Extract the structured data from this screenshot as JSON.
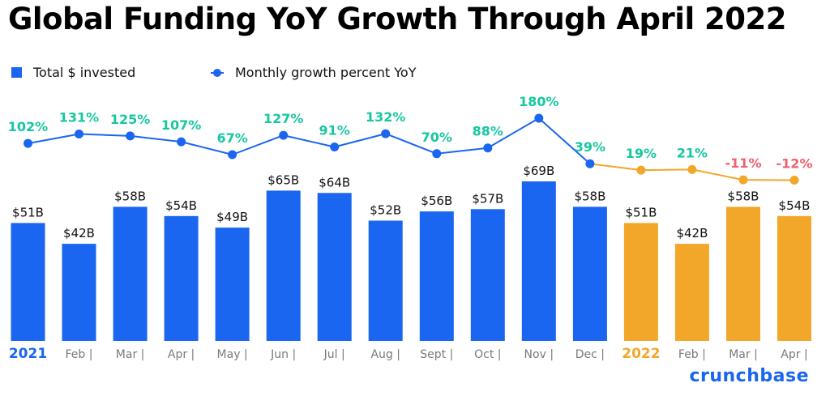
{
  "chart_data": {
    "type": "bar",
    "title": "Global Funding YoY Growth Through April 2022",
    "categories": [
      "2021",
      "Feb |",
      "Mar |",
      "Apr |",
      "May |",
      "Jun |",
      "Jul |",
      "Aug |",
      "Sept |",
      "Oct |",
      "Nov |",
      "Dec |",
      "2022",
      "Feb |",
      "Mar |",
      "Apr |"
    ],
    "series": [
      {
        "name": "Total $ invested",
        "type": "bar",
        "values": [
          51,
          42,
          58,
          54,
          49,
          65,
          64,
          52,
          56,
          57,
          69,
          58,
          51,
          42,
          58,
          54
        ],
        "value_labels": [
          "$51B",
          "$42B",
          "$58B",
          "$54B",
          "$49B",
          "$65B",
          "$64B",
          "$52B",
          "$56B",
          "$57B",
          "$69B",
          "$58B",
          "$51B",
          "$42B",
          "$58B",
          "$54B"
        ]
      },
      {
        "name": "Monthly growth percent YoY",
        "type": "line",
        "values": [
          102,
          131,
          125,
          107,
          67,
          127,
          91,
          132,
          70,
          88,
          180,
          39,
          19,
          21,
          -11,
          -12
        ],
        "value_labels": [
          "102%",
          "131%",
          "125%",
          "107%",
          "67%",
          "127%",
          "91%",
          "132%",
          "70%",
          "88%",
          "180%",
          "39%",
          "19%",
          "21%",
          "-11%",
          "-12%"
        ]
      }
    ],
    "year_groups": [
      {
        "label": "2021",
        "start_index": 0,
        "color": "#1a66f0"
      },
      {
        "label": "2022",
        "start_index": 12,
        "color": "#f2a72a"
      }
    ],
    "bar_ylim": [
      0,
      69
    ],
    "line_ylim": [
      -12,
      180
    ],
    "xlabel": "",
    "ylabel": "",
    "grid": false,
    "legend_position": "top-left"
  },
  "legend": {
    "bar_label": "Total $ invested",
    "line_label": "Monthly growth percent YoY"
  },
  "brand": "crunchbase",
  "colors": {
    "bar_2021": "#1a66f0",
    "bar_2022": "#f2a72a",
    "line_2021": "#1a66f0",
    "line_2022": "#f2a72a",
    "label_positive": "#17c7a0",
    "label_negative": "#f0606e",
    "value_label": "#111111",
    "tick_label": "#7a7a7a",
    "brand": "#1a66f0"
  }
}
